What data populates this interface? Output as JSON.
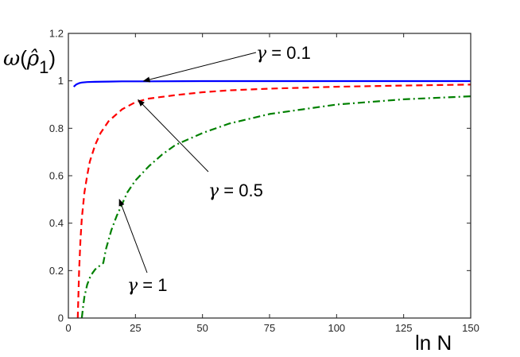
{
  "chart_data": {
    "type": "line",
    "title": "",
    "xlabel": "ln N",
    "ylabel": "ω(ρ̂1)",
    "ylabel_parts": {
      "omega": "ω",
      "rho_hat": "ρ̂",
      "subscript": "1"
    },
    "xlim": [
      0,
      150
    ],
    "ylim": [
      0,
      1.2
    ],
    "xticks": [
      0,
      25,
      50,
      75,
      100,
      125,
      150
    ],
    "yticks": [
      0,
      0.2,
      0.4,
      0.6,
      0.8,
      1,
      1.2
    ],
    "grid": false,
    "series": [
      {
        "name": "γ = 0.1",
        "color": "#0000ff",
        "style": "solid",
        "x": [
          2,
          3,
          4,
          5,
          7,
          10,
          15,
          20,
          30,
          50,
          75,
          100,
          125,
          150
        ],
        "y": [
          0.975,
          0.985,
          0.99,
          0.993,
          0.995,
          0.996,
          0.997,
          0.998,
          0.998,
          0.999,
          0.999,
          0.999,
          0.999,
          0.999
        ]
      },
      {
        "name": "γ = 0.5",
        "color": "#ff0000",
        "style": "dashed",
        "x": [
          3.5,
          4,
          4.5,
          5,
          6,
          7,
          8,
          10,
          12,
          15,
          20,
          25,
          30,
          40,
          50,
          60,
          75,
          100,
          125,
          150
        ],
        "y": [
          0.0,
          0.2,
          0.33,
          0.42,
          0.53,
          0.6,
          0.66,
          0.73,
          0.78,
          0.83,
          0.88,
          0.91,
          0.925,
          0.94,
          0.952,
          0.96,
          0.967,
          0.975,
          0.98,
          0.984
        ]
      },
      {
        "name": "γ = 1",
        "color": "#008000",
        "style": "dashdot",
        "x": [
          5,
          5.5,
          6,
          7,
          8,
          9,
          10,
          11,
          12,
          13,
          14,
          15,
          16,
          18,
          20,
          22,
          25,
          30,
          35,
          40,
          50,
          60,
          75,
          100,
          125,
          150
        ],
        "y": [
          0.0,
          0.05,
          0.09,
          0.14,
          0.17,
          0.19,
          0.205,
          0.215,
          0.223,
          0.232,
          0.29,
          0.33,
          0.37,
          0.43,
          0.48,
          0.53,
          0.58,
          0.64,
          0.69,
          0.73,
          0.78,
          0.82,
          0.86,
          0.9,
          0.922,
          0.935
        ]
      }
    ],
    "annotations": [
      {
        "text": "γ = 0.1",
        "greek": "γ",
        "rest": " = 0.1",
        "point": [
          28,
          0.999
        ]
      },
      {
        "text": "γ = 0.5",
        "greek": "γ",
        "rest": " = 0.5",
        "point": [
          26,
          0.92
        ]
      },
      {
        "text": "γ = 1",
        "greek": "γ",
        "rest": " = 1",
        "point": [
          19,
          0.5
        ]
      }
    ]
  }
}
